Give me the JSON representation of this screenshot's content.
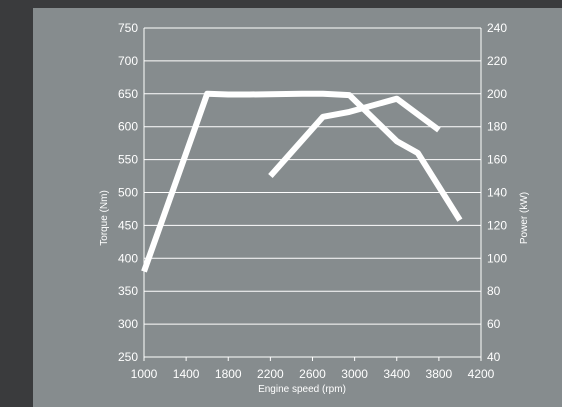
{
  "chart_data": {
    "type": "line",
    "xlabel": "Engine speed (rpm)",
    "ylabel_left": "Torque (Nm)",
    "ylabel_right": "Power (kW)",
    "x_ticks": [
      1000,
      1400,
      1800,
      2200,
      2600,
      3000,
      3400,
      3800,
      4200
    ],
    "y_left_ticks": [
      250,
      300,
      350,
      400,
      450,
      500,
      550,
      600,
      650,
      700,
      750
    ],
    "y_right_ticks": [
      40,
      60,
      80,
      100,
      120,
      140,
      160,
      180,
      200,
      220,
      240
    ],
    "xlim": [
      1000,
      4200
    ],
    "ylim_left": [
      250,
      750
    ],
    "ylim_right": [
      40,
      240
    ],
    "grid": true,
    "series": [
      {
        "axis": "left",
        "x": [
          1000,
          1600,
          1800,
          2000,
          2500,
          2700,
          2950,
          3400,
          3600,
          4000
        ],
        "y": [
          380,
          650,
          649,
          649,
          650,
          650,
          648,
          578,
          560,
          458
        ]
      },
      {
        "axis": "right",
        "x": [
          2200,
          2700,
          2950,
          3400,
          3800
        ],
        "y": [
          150,
          186,
          189,
          197,
          178
        ]
      }
    ]
  },
  "colors": {
    "background": "#868c8e",
    "frame": "#3a3b3d",
    "lines": "#ffffff"
  }
}
